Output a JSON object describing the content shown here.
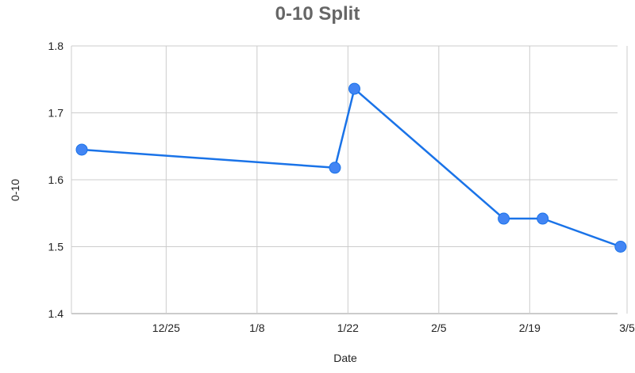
{
  "chart_data": {
    "type": "line",
    "title": "0-10 Split",
    "xlabel": "Date",
    "ylabel": "0-10",
    "x_ticks": [
      "12/25",
      "1/8",
      "1/22",
      "2/5",
      "2/19",
      "3/5"
    ],
    "y_ticks": [
      "1.4",
      "1.5",
      "1.6",
      "1.7",
      "1.8"
    ],
    "ylim": [
      1.4,
      1.8
    ],
    "grid": true,
    "series": [
      {
        "color": "#1a73e8",
        "marker_color": "#4285f4",
        "points": [
          {
            "x": "12/12",
            "y": 1.645
          },
          {
            "x": "1/20",
            "y": 1.618
          },
          {
            "x": "1/23",
            "y": 1.736
          },
          {
            "x": "2/15",
            "y": 1.542
          },
          {
            "x": "2/21",
            "y": 1.542
          },
          {
            "x": "3/4",
            "y": 1.5
          }
        ]
      }
    ]
  }
}
